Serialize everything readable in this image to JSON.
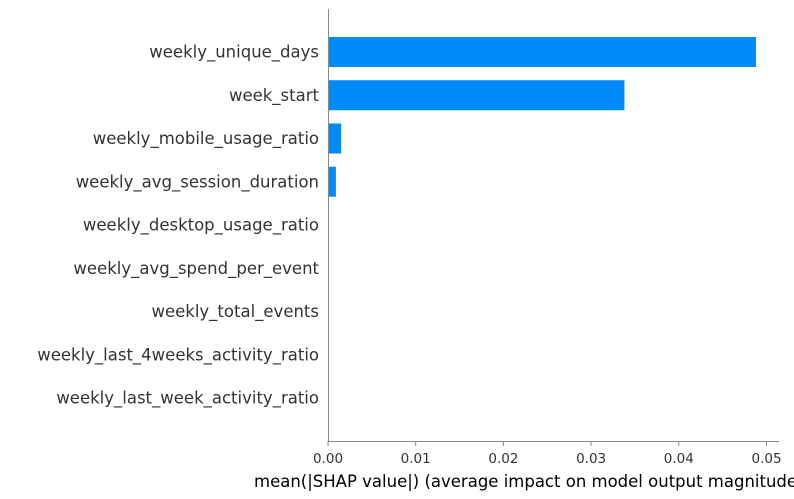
{
  "chart_data": {
    "type": "bar",
    "orientation": "horizontal",
    "categories": [
      "weekly_unique_days",
      "week_start",
      "weekly_mobile_usage_ratio",
      "weekly_avg_session_duration",
      "weekly_desktop_usage_ratio",
      "weekly_avg_spend_per_event",
      "weekly_total_events",
      "weekly_last_4weeks_activity_ratio",
      "weekly_last_week_activity_ratio"
    ],
    "values": [
      0.0488,
      0.0338,
      0.0015,
      0.0009,
      0,
      0,
      0,
      0,
      0
    ],
    "xlabel": "mean(|SHAP value|) (average impact on model output magnitude)",
    "ylabel": "",
    "xticks": [
      "0.00",
      "0.01",
      "0.02",
      "0.03",
      "0.04",
      "0.05"
    ],
    "xtick_values": [
      0,
      0.01,
      0.02,
      0.03,
      0.04,
      0.05
    ],
    "xlim": [
      0,
      0.0512
    ],
    "grid": false,
    "bar_color": "#008bfb",
    "axis_color": "#888888",
    "label_color": "#333333"
  }
}
